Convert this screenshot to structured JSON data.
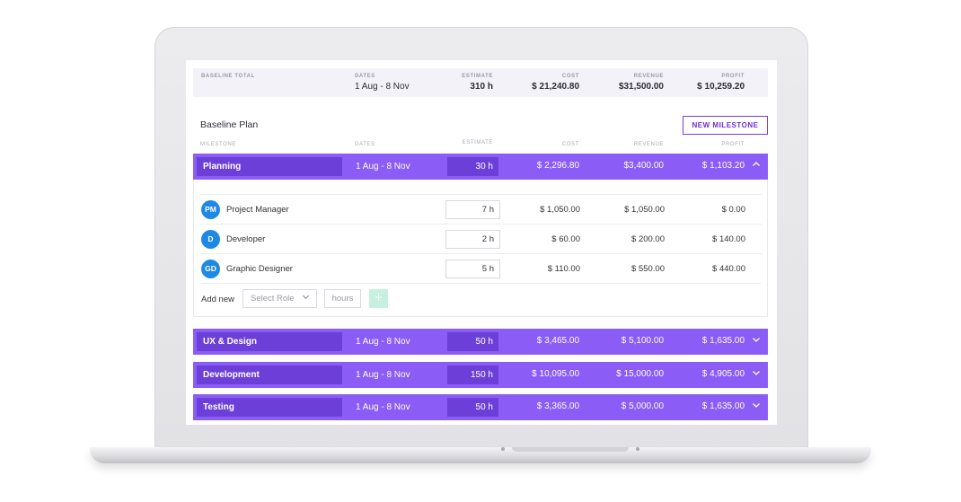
{
  "summary": {
    "baseline_label": "BASELINE TOTAL",
    "dates_label": "DATES",
    "dates_value": "1 Aug - 8 Nov",
    "estimate_label": "ESTIMATE",
    "estimate_value": "310 h",
    "cost_label": "COST",
    "cost_value": "$ 21,240.80",
    "revenue_label": "REVENUE",
    "revenue_value": "$31,500.00",
    "profit_label": "PROFIT",
    "profit_value": "$ 10,259.20"
  },
  "plan": {
    "title": "Baseline Plan",
    "new_milestone_label": "NEW MILESTONE"
  },
  "columns": {
    "milestone": "MILESTONE",
    "dates": "DATES",
    "estimate": "ESTIMATE",
    "cost": "COST",
    "revenue": "REVENUE",
    "profit": "PROFIT"
  },
  "milestones": [
    {
      "name": "Planning",
      "dates": "1 Aug - 8 Nov",
      "estimate": "30 h",
      "cost": "$ 2,296.80",
      "revenue": "$3,400.00",
      "profit": "$ 1,103.20",
      "chevron": "^"
    },
    {
      "name": "UX & Design",
      "dates": "1 Aug - 8 Nov",
      "estimate": "50 h",
      "cost": "$ 3,465.00",
      "revenue": "$ 5,100.00",
      "profit": "$ 1,635.00",
      "chevron": "⌄"
    },
    {
      "name": "Development",
      "dates": "1 Aug - 8 Nov",
      "estimate": "150 h",
      "cost": "$ 10,095.00",
      "revenue": "$ 15,000.00",
      "profit": "$ 4,905.00",
      "chevron": "⌄"
    },
    {
      "name": "Testing",
      "dates": "1 Aug - 8 Nov",
      "estimate": "50 h",
      "cost": "$ 3,365.00",
      "revenue": "$ 5,000.00",
      "profit": "$ 1,635.00",
      "chevron": "⌄"
    }
  ],
  "roles": [
    {
      "initials": "PM",
      "name": "Project Manager",
      "hours": "7 h",
      "cost": "$ 1,050.00",
      "revenue": "$ 1,050.00",
      "profit": "$ 0.00"
    },
    {
      "initials": "D",
      "name": "Developer",
      "hours": "2 h",
      "cost": "$ 60.00",
      "revenue": "$ 200.00",
      "profit": "$ 140.00"
    },
    {
      "initials": "GD",
      "name": "Graphic Designer",
      "hours": "5 h",
      "cost": "$ 110.00",
      "revenue": "$ 550.00",
      "profit": "$ 440.00"
    }
  ],
  "add_new": {
    "label": "Add new",
    "select_placeholder": "Select Role",
    "hours_placeholder": "hours",
    "add_icon": "+"
  },
  "colors": {
    "accent": "#8b5cf6",
    "accent_dark": "#6d3fd9",
    "avatar": "#1e88e5",
    "add_button": "#c6f0df"
  }
}
